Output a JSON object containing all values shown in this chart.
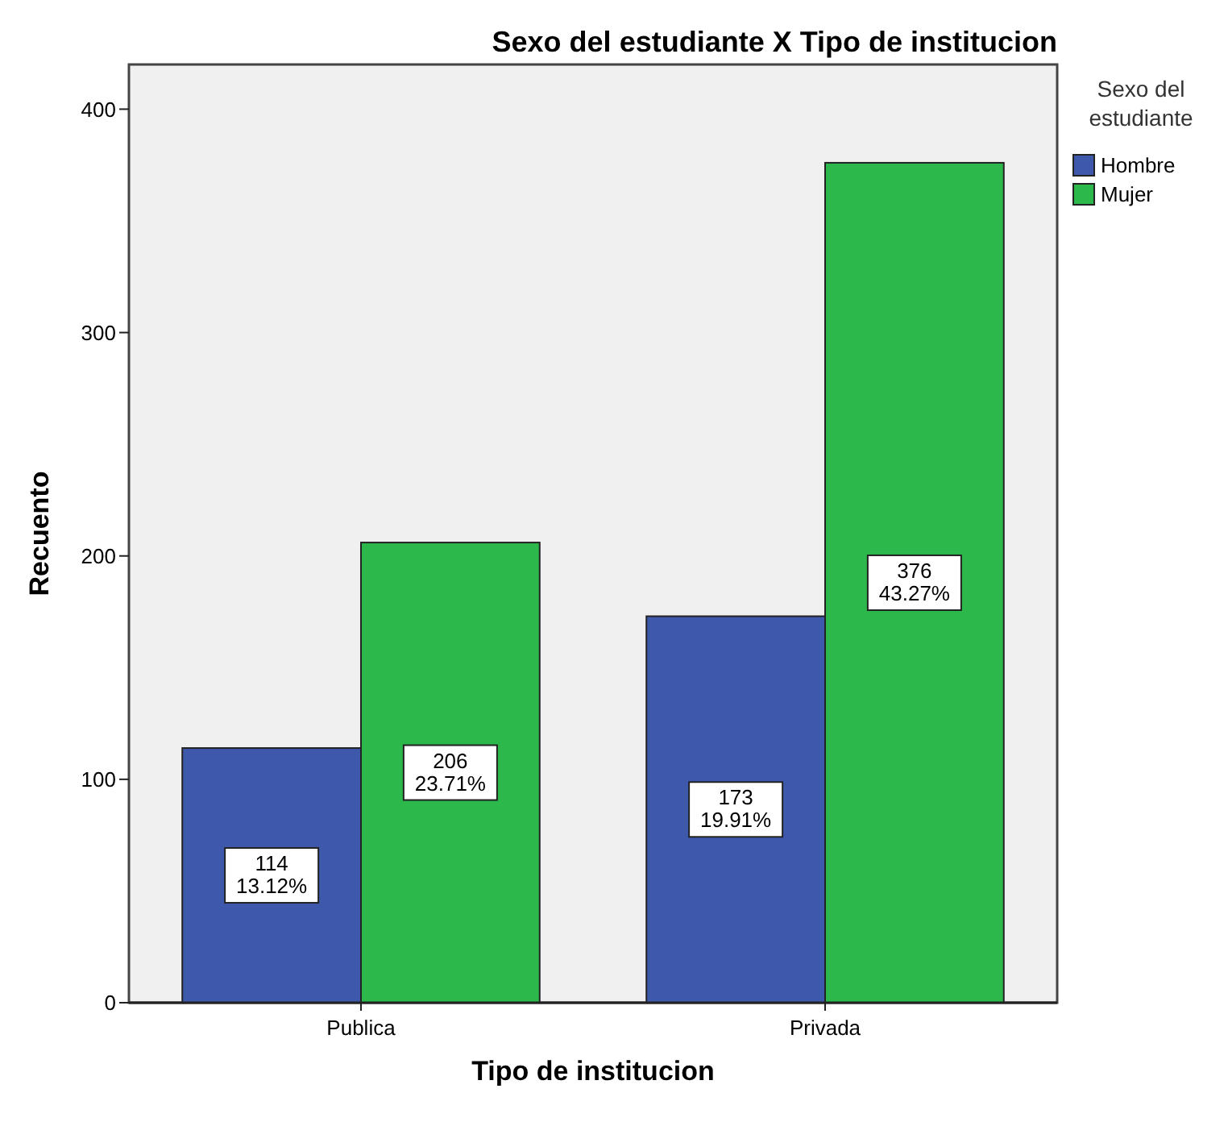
{
  "chart_data": {
    "type": "bar",
    "title": "Sexo del estudiante X Tipo de institucion",
    "xlabel": "Tipo de institucion",
    "ylabel": "Recuento",
    "legend_title": "Sexo del estudiante",
    "categories": [
      "Publica",
      "Privada"
    ],
    "series": [
      {
        "name": "Hombre",
        "color": "#3e58ac",
        "values": [
          114,
          173
        ],
        "value_labels": [
          "114\n13.12%",
          "173\n19.91%"
        ]
      },
      {
        "name": "Mujer",
        "color": "#2db84b",
        "values": [
          206,
          376
        ],
        "value_labels": [
          "206\n23.71%",
          "376\n43.27%"
        ]
      }
    ],
    "ylim": [
      0,
      420
    ],
    "yticks": [
      0,
      100,
      200,
      300,
      400
    ],
    "grid": false,
    "legend": "top right"
  }
}
